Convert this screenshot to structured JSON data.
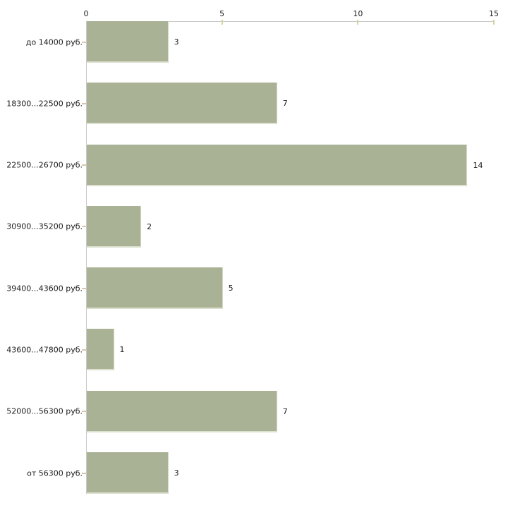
{
  "chart_data": {
    "type": "bar",
    "orientation": "horizontal",
    "title": "",
    "xlabel": "",
    "ylabel": "",
    "categories": [
      "до 14000 руб.",
      "18300...22500 руб.",
      "22500...26700 руб.",
      "30900...35200 руб.",
      "39400...43600 руб.",
      "43600...47800 руб.",
      "52000...56300 руб.",
      "от 56300 руб."
    ],
    "values": [
      3,
      7,
      14,
      2,
      5,
      1,
      7,
      3
    ],
    "value_labels": [
      "3",
      "7",
      "14",
      "2",
      "5",
      "1",
      "7",
      "3"
    ],
    "xlim": [
      0,
      15
    ],
    "x_ticks": [
      "0",
      "5",
      "10",
      "15"
    ],
    "x_tick_values": [
      0,
      5,
      10,
      15
    ],
    "axis_position": "top",
    "grid": false,
    "legend": false,
    "colors": {
      "bar_fill": "#aab295",
      "bar_edge": "#dde1d0",
      "axis_line": "#c9c9c9",
      "x_tick_mark": "#d6d3a0",
      "y_tick_mark": "#dbc3ae",
      "text": "#1c1c1c",
      "background": "#ffffff"
    }
  }
}
